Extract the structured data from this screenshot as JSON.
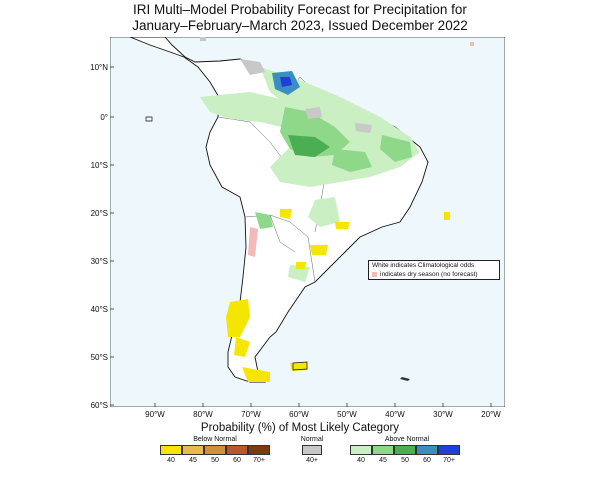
{
  "title": {
    "line1": "IRI Multi–Model Probability Forecast for Precipitation for",
    "line2": "January–February–March 2023, Issued December 2022"
  },
  "axes": {
    "lat_labels": [
      "10°N",
      "0°",
      "10°S",
      "20°S",
      "30°S",
      "40°S",
      "50°S",
      "60°S"
    ],
    "lon_labels": [
      "90°W",
      "80°W",
      "70°W",
      "60°W",
      "50°W",
      "40°W",
      "30°W",
      "20°W"
    ]
  },
  "notes": {
    "white": "White indicates Climatological odds",
    "dry": "indicates dry season (no forecast)"
  },
  "legend": {
    "title": "Probability (%) of Most Likely Category",
    "below_normal": {
      "label": "Below Normal",
      "ticks": [
        "40",
        "45",
        "50",
        "60",
        "70+"
      ],
      "colors": [
        "#f5e600",
        "#e6bd4a",
        "#d1913a",
        "#b8582a",
        "#7a3a12"
      ]
    },
    "normal": {
      "label": "Normal",
      "ticks": [
        "40+"
      ],
      "colors": [
        "#c8c8c8"
      ]
    },
    "above_normal": {
      "label": "Above Normal",
      "ticks": [
        "40",
        "45",
        "50",
        "60",
        "70+"
      ],
      "colors": [
        "#c9efc3",
        "#8fd88a",
        "#4cae52",
        "#3a8ec2",
        "#1f3fd6"
      ]
    }
  },
  "map_colors": {
    "ocean": "#eef7fb",
    "land": "#ffffff",
    "dry_season": "#f4b9b9"
  }
}
